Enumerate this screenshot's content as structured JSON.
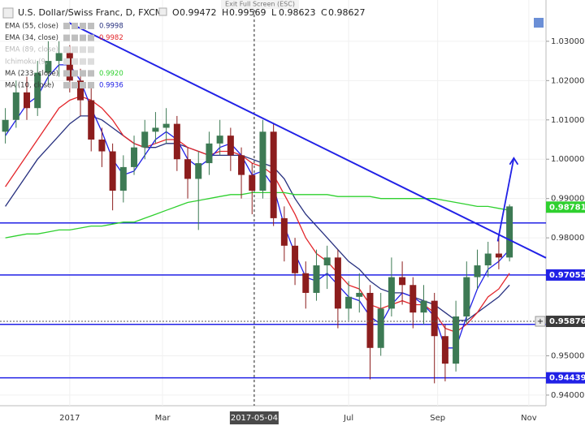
{
  "chart_data": {
    "type": "candlestick",
    "title": "U.S. Dollar/Swiss Franc, D, FXCM",
    "ohlc_header": [
      {
        "label": "O",
        "value": 0.99472
      },
      {
        "label": "H",
        "value": 0.99569
      },
      {
        "label": "L",
        "value": 0.98623
      },
      {
        "label": "C",
        "value": 0.98627
      }
    ],
    "tooltip": "Exit Full Screen (ESC)",
    "up_color": "#3d7a54",
    "down_color": "#8c1d1d",
    "candles": {
      "open": [
        1.007,
        1.01,
        1.017,
        1.013,
        1.022,
        1.025,
        1.027,
        1.02,
        1.015,
        1.005,
        1.002,
        0.992,
        0.998,
        1.003,
        1.007,
        1.008,
        1.009,
        1.0,
        0.995,
        0.999,
        1.004,
        1.006,
        1.001,
        0.996,
        0.992,
        1.007,
        0.985,
        0.978,
        0.971,
        0.966,
        0.973,
        0.975,
        0.962,
        0.965,
        0.966,
        0.952,
        0.962,
        0.97,
        0.968,
        0.961,
        0.964,
        0.955,
        0.948,
        0.96,
        0.97,
        0.973,
        0.976,
        0.975
      ],
      "high": [
        1.013,
        1.02,
        1.021,
        1.025,
        1.03,
        1.03,
        1.029,
        1.023,
        1.018,
        1.008,
        1.004,
        1.001,
        1.006,
        1.01,
        1.012,
        1.013,
        1.011,
        1.003,
        1.002,
        1.007,
        1.01,
        1.008,
        1.003,
        0.999,
        1.01,
        1.009,
        0.988,
        0.98,
        0.974,
        0.977,
        0.978,
        0.977,
        0.969,
        0.971,
        0.968,
        0.966,
        0.975,
        0.974,
        0.97,
        0.968,
        0.966,
        0.958,
        0.964,
        0.974,
        0.977,
        0.979,
        0.98,
        0.9885
      ],
      "low": [
        1.004,
        1.008,
        1.01,
        1.011,
        1.019,
        1.021,
        1.017,
        1.011,
        1.002,
        0.998,
        0.987,
        0.989,
        0.996,
        1.0,
        1.004,
        1.004,
        0.997,
        0.99,
        0.982,
        0.996,
        1.001,
        0.997,
        0.99,
        0.986,
        0.99,
        0.983,
        0.974,
        0.968,
        0.962,
        0.964,
        0.967,
        0.957,
        0.959,
        0.961,
        0.944,
        0.95,
        0.96,
        0.963,
        0.957,
        0.958,
        0.943,
        0.9435,
        0.946,
        0.958,
        0.967,
        0.97,
        0.972,
        0.974
      ],
      "close": [
        1.01,
        1.017,
        1.013,
        1.022,
        1.025,
        1.027,
        1.02,
        1.015,
        1.005,
        1.002,
        0.992,
        0.998,
        1.003,
        1.007,
        1.008,
        1.009,
        1.0,
        0.995,
        0.999,
        1.004,
        1.006,
        1.001,
        0.996,
        0.992,
        1.007,
        0.985,
        0.978,
        0.971,
        0.966,
        0.973,
        0.975,
        0.962,
        0.965,
        0.966,
        0.952,
        0.962,
        0.97,
        0.968,
        0.961,
        0.964,
        0.955,
        0.948,
        0.96,
        0.97,
        0.973,
        0.976,
        0.975,
        0.988
      ]
    },
    "indicators": [
      {
        "name": "EMA (55, close)",
        "value": 0.9998,
        "color": "#27307f",
        "values": [
          0.988,
          0.992,
          0.996,
          1.0,
          1.003,
          1.006,
          1.009,
          1.011,
          1.011,
          1.01,
          1.008,
          1.006,
          1.004,
          1.003,
          1.003,
          1.004,
          1.004,
          1.003,
          1.002,
          1.001,
          1.001,
          1.001,
          1.001,
          1.0,
          0.999,
          0.998,
          0.995,
          0.99,
          0.986,
          0.983,
          0.98,
          0.977,
          0.974,
          0.972,
          0.969,
          0.967,
          0.966,
          0.966,
          0.965,
          0.964,
          0.963,
          0.961,
          0.959,
          0.959,
          0.961,
          0.963,
          0.965,
          0.968
        ]
      },
      {
        "name": "EMA (34, close)",
        "value": 0.9982,
        "color": "#e3262b",
        "values": [
          0.993,
          0.997,
          1.001,
          1.005,
          1.009,
          1.013,
          1.015,
          1.016,
          1.015,
          1.013,
          1.01,
          1.006,
          1.004,
          1.003,
          1.004,
          1.005,
          1.005,
          1.003,
          1.002,
          1.001,
          1.002,
          1.002,
          1.001,
          0.999,
          0.998,
          0.996,
          0.991,
          0.986,
          0.98,
          0.976,
          0.974,
          0.971,
          0.968,
          0.967,
          0.963,
          0.962,
          0.963,
          0.964,
          0.963,
          0.963,
          0.961,
          0.957,
          0.956,
          0.958,
          0.961,
          0.965,
          0.967,
          0.971
        ]
      },
      {
        "name": "EMA (89, close)",
        "faded": true
      },
      {
        "name": "Ichimoku (9,",
        "faded": true
      },
      {
        "name": "MA (233, close)",
        "value": 0.992,
        "value_label": "0.9920",
        "color": "#2fd02f",
        "values": [
          0.98,
          0.9805,
          0.981,
          0.981,
          0.9815,
          0.982,
          0.982,
          0.9825,
          0.983,
          0.983,
          0.9835,
          0.984,
          0.984,
          0.985,
          0.986,
          0.987,
          0.988,
          0.989,
          0.9895,
          0.99,
          0.9905,
          0.991,
          0.991,
          0.9915,
          0.9915,
          0.9915,
          0.9915,
          0.991,
          0.991,
          0.991,
          0.991,
          0.9905,
          0.9905,
          0.9905,
          0.9905,
          0.99,
          0.99,
          0.99,
          0.99,
          0.99,
          0.99,
          0.9895,
          0.989,
          0.9885,
          0.988,
          0.988,
          0.9875,
          0.987
        ]
      },
      {
        "name": "MA (10, close)",
        "value": 0.9936,
        "color": "#2121e6",
        "values": [
          1.006,
          1.01,
          1.014,
          1.016,
          1.021,
          1.024,
          1.024,
          1.02,
          1.013,
          1.007,
          1.0,
          0.996,
          0.997,
          1.001,
          1.005,
          1.007,
          1.005,
          1.0,
          0.998,
          1.0,
          1.003,
          1.004,
          1.001,
          0.996,
          0.997,
          0.993,
          0.983,
          0.976,
          0.97,
          0.969,
          0.971,
          0.968,
          0.965,
          0.964,
          0.96,
          0.958,
          0.963,
          0.966,
          0.965,
          0.963,
          0.96,
          0.952,
          0.952,
          0.96,
          0.967,
          0.972,
          0.974,
          0.977
        ]
      }
    ],
    "xlim": [
      -0.5,
      50.4
    ],
    "xticks": [
      {
        "value": 6.0,
        "label": "2017"
      },
      {
        "value": 14.65,
        "label": "Mar"
      },
      {
        "value": 23.2,
        "label": "2017-05-04",
        "highlight": true
      },
      {
        "value": 32.0,
        "label": "Jul"
      },
      {
        "value": 40.3,
        "label": "Sep"
      },
      {
        "value": 48.8,
        "label": "Nov"
      }
    ],
    "ylim": [
      0.9373,
      1.0405
    ],
    "yticks": [
      {
        "value": 0.94,
        "label": "0.94000"
      },
      {
        "value": 0.95,
        "label": "0.95000"
      },
      {
        "value": 0.98,
        "label": "0.98000"
      },
      {
        "value": 0.99,
        "label": "0.99000"
      },
      {
        "value": 1.0,
        "label": "1.00000"
      },
      {
        "value": 1.01,
        "label": "1.01000"
      },
      {
        "value": 1.02,
        "label": "1.02000"
      },
      {
        "value": 1.03,
        "label": "1.03000"
      }
    ],
    "horizontal_lines": [
      0.9838,
      0.97055,
      0.958,
      0.94439
    ],
    "price_labels": [
      {
        "value": 0.98781,
        "color": "#2fd02f"
      },
      {
        "value": 0.97055,
        "color": "#2121e6"
      },
      {
        "value": 0.95876,
        "color": "#3b3b3b",
        "dashed": true
      },
      {
        "value": 0.94439,
        "color": "#2121e6"
      }
    ],
    "trendline": {
      "x": [
        5.94,
        50.4
      ],
      "y": [
        1.0347,
        0.9749
      ],
      "color": "#2121e6"
    },
    "arrow": {
      "x": [
        45.9,
        47.4
      ],
      "y": [
        0.9791,
        1.0003
      ],
      "color": "#2121e6"
    },
    "crosshair_tick": 2
  }
}
